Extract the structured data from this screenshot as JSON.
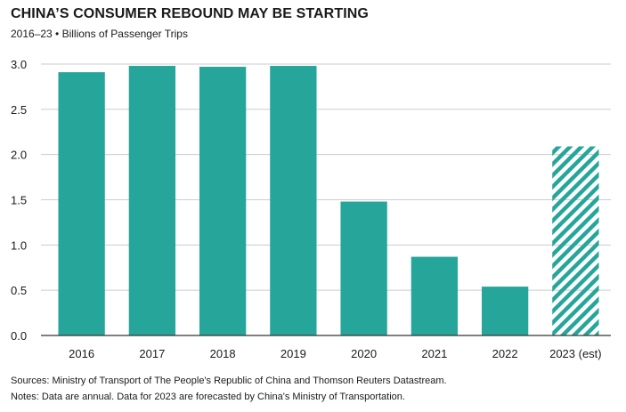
{
  "title": "CHINA’S CONSUMER REBOUND MAY BE STARTING",
  "subtitle": "2016–23 • Billions of Passenger Trips",
  "sources": "Sources: Ministry of Transport of The People's Republic of China and Thomson Reuters Datastream.",
  "notes": "Notes: Data are annual. Data for 2023 are forecasted by China's Ministry of Transportation.",
  "colors": {
    "bar": "#26a69a",
    "grid": "#cccccc",
    "axis": "#333333"
  },
  "chart_data": {
    "type": "bar",
    "title": "CHINA’S CONSUMER REBOUND MAY BE STARTING",
    "subtitle": "2016–23 • Billions of Passenger Trips",
    "categories": [
      "2016",
      "2017",
      "2018",
      "2019",
      "2020",
      "2021",
      "2022",
      "2023 (est)"
    ],
    "values": [
      2.91,
      2.98,
      2.97,
      2.98,
      1.48,
      0.87,
      0.54,
      2.09
    ],
    "estimated": [
      false,
      false,
      false,
      false,
      false,
      false,
      false,
      true
    ],
    "ylim": [
      0,
      3.0
    ],
    "yticks": [
      "0.0",
      "0.5",
      "1.0",
      "1.5",
      "2.0",
      "2.5",
      "3.0"
    ],
    "xlabel": "",
    "ylabel": "",
    "grid": true
  }
}
